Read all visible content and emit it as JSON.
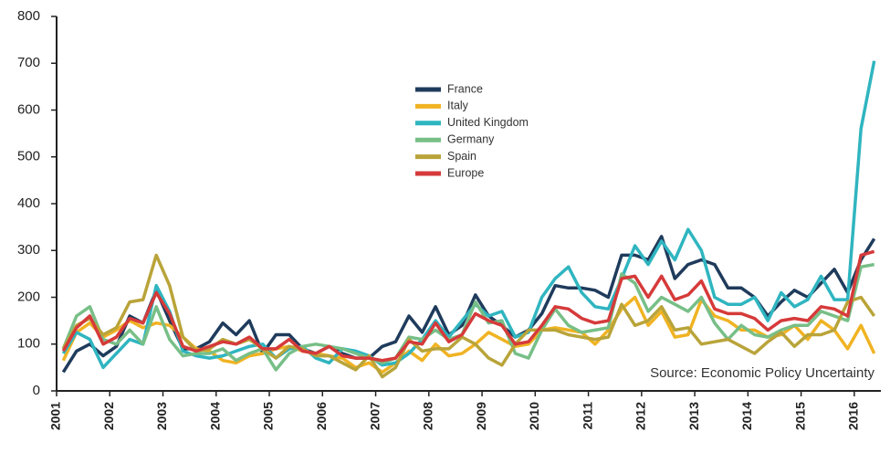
{
  "chart_data": {
    "type": "line",
    "annotation": "Source: Economic Policy Uncertainty",
    "legend_position": "top-center",
    "grid": false,
    "xlim": [
      2001,
      2016.5
    ],
    "xticks": [
      2001,
      2002,
      2003,
      2004,
      2005,
      2006,
      2007,
      2008,
      2009,
      2010,
      2011,
      2012,
      2013,
      2014,
      2015,
      2016
    ],
    "ylim": [
      0,
      800
    ],
    "yticks": [
      0,
      100,
      200,
      300,
      400,
      500,
      600,
      700,
      800
    ],
    "x": [
      2001.125,
      2001.375,
      2001.625,
      2001.875,
      2002.125,
      2002.375,
      2002.625,
      2002.875,
      2003.125,
      2003.375,
      2003.625,
      2003.875,
      2004.125,
      2004.375,
      2004.625,
      2004.875,
      2005.125,
      2005.375,
      2005.625,
      2005.875,
      2006.125,
      2006.375,
      2006.625,
      2006.875,
      2007.125,
      2007.375,
      2007.625,
      2007.875,
      2008.125,
      2008.375,
      2008.625,
      2008.875,
      2009.125,
      2009.375,
      2009.625,
      2009.875,
      2010.125,
      2010.375,
      2010.625,
      2010.875,
      2011.125,
      2011.375,
      2011.625,
      2011.875,
      2012.125,
      2012.375,
      2012.625,
      2012.875,
      2013.125,
      2013.375,
      2013.625,
      2013.875,
      2014.125,
      2014.375,
      2014.625,
      2014.875,
      2015.125,
      2015.375,
      2015.625,
      2015.875,
      2016.125,
      2016.375
    ],
    "series": [
      {
        "name": "France",
        "color": "#1f3b5c",
        "values": [
          40,
          85,
          100,
          75,
          95,
          160,
          145,
          215,
          150,
          90,
          90,
          105,
          145,
          120,
          150,
          80,
          120,
          120,
          90,
          80,
          95,
          80,
          70,
          70,
          95,
          105,
          160,
          125,
          180,
          120,
          140,
          205,
          160,
          140,
          115,
          130,
          165,
          225,
          220,
          220,
          215,
          200,
          290,
          290,
          280,
          330,
          240,
          270,
          280,
          270,
          220,
          220,
          200,
          160,
          190,
          215,
          200,
          230,
          260,
          210,
          280,
          325
        ]
      },
      {
        "name": "Italy",
        "color": "#f0b323",
        "values": [
          65,
          125,
          145,
          115,
          130,
          150,
          135,
          145,
          140,
          115,
          90,
          85,
          65,
          60,
          75,
          80,
          90,
          95,
          85,
          80,
          75,
          70,
          50,
          60,
          40,
          60,
          85,
          65,
          100,
          75,
          80,
          100,
          125,
          110,
          95,
          100,
          130,
          135,
          130,
          125,
          100,
          130,
          175,
          200,
          140,
          170,
          115,
          120,
          195,
          160,
          150,
          130,
          130,
          115,
          120,
          140,
          110,
          150,
          130,
          90,
          140,
          80
        ]
      },
      {
        "name": "United Kingdom",
        "color": "#2fb5c0",
        "values": [
          80,
          125,
          110,
          50,
          80,
          110,
          100,
          225,
          170,
          85,
          75,
          70,
          75,
          85,
          95,
          100,
          70,
          90,
          95,
          70,
          60,
          90,
          85,
          75,
          55,
          60,
          80,
          110,
          150,
          115,
          150,
          185,
          160,
          170,
          115,
          125,
          200,
          240,
          265,
          210,
          180,
          175,
          240,
          310,
          270,
          320,
          280,
          345,
          300,
          200,
          185,
          185,
          200,
          150,
          210,
          180,
          195,
          245,
          195,
          195,
          560,
          705
        ]
      },
      {
        "name": "Germany",
        "color": "#77bf87",
        "values": [
          90,
          160,
          180,
          110,
          100,
          130,
          100,
          180,
          110,
          75,
          80,
          80,
          90,
          65,
          80,
          90,
          45,
          80,
          95,
          100,
          95,
          90,
          80,
          70,
          60,
          70,
          115,
          110,
          130,
          110,
          120,
          190,
          145,
          150,
          80,
          70,
          130,
          175,
          140,
          125,
          130,
          135,
          250,
          230,
          170,
          200,
          185,
          170,
          200,
          145,
          110,
          140,
          120,
          115,
          130,
          140,
          140,
          170,
          160,
          150,
          265,
          270
        ]
      },
      {
        "name": "Spain",
        "color": "#b9a43a",
        "values": [
          90,
          140,
          155,
          120,
          135,
          190,
          195,
          290,
          225,
          115,
          85,
          90,
          110,
          100,
          110,
          90,
          70,
          95,
          90,
          75,
          75,
          60,
          45,
          75,
          30,
          50,
          110,
          85,
          90,
          90,
          115,
          100,
          70,
          55,
          100,
          130,
          130,
          130,
          120,
          115,
          110,
          115,
          185,
          140,
          150,
          180,
          130,
          135,
          100,
          105,
          110,
          95,
          80,
          105,
          125,
          95,
          120,
          120,
          130,
          190,
          200,
          160
        ]
      },
      {
        "name": "Europe",
        "color": "#d63a3a",
        "values": [
          85,
          135,
          160,
          100,
          115,
          155,
          145,
          210,
          165,
          95,
          85,
          95,
          105,
          100,
          115,
          90,
          90,
          110,
          85,
          80,
          95,
          75,
          70,
          70,
          65,
          70,
          105,
          100,
          145,
          105,
          120,
          165,
          150,
          140,
          100,
          105,
          140,
          180,
          175,
          155,
          145,
          150,
          240,
          245,
          200,
          245,
          195,
          205,
          235,
          175,
          165,
          165,
          155,
          130,
          150,
          155,
          150,
          180,
          175,
          160,
          290,
          298
        ]
      }
    ]
  }
}
